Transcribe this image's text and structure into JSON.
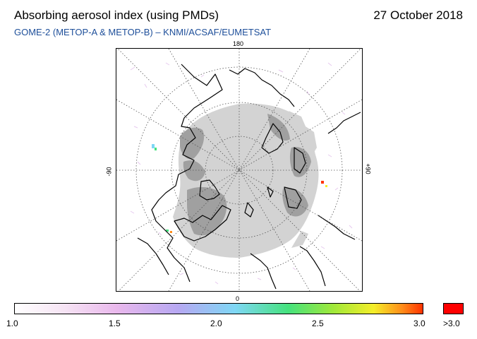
{
  "header": {
    "title": "Absorbing aerosol index (using PMDs)",
    "date": "27 October 2018",
    "subtitle": "GOME-2 (METOP-A & METOP-B)  –  KNMI/ACSAF/EUMETSAT"
  },
  "map": {
    "projection": "polar stereographic (north pole)",
    "longitude_labels": {
      "top": "180",
      "bottom": "0",
      "left": "-90",
      "right": "+90"
    },
    "colors": {
      "no_data_light": "#d3d3d3",
      "no_data_dark": "#a0a0a0",
      "coastline": "#000000",
      "graticule": "#555555"
    }
  },
  "colorbar": {
    "ticks": [
      "1.0",
      "1.5",
      "2.0",
      "2.5",
      "3.0"
    ],
    "overflow_label": ">3.0",
    "colors": [
      "#ffffff",
      "#f6e4f4",
      "#e9b8ec",
      "#b7a8f2",
      "#7fd7f5",
      "#45e27e",
      "#9fe83a",
      "#f4ee2a",
      "#ff8c1a",
      "#ff3300"
    ],
    "overflow_color": "#ff0000"
  }
}
